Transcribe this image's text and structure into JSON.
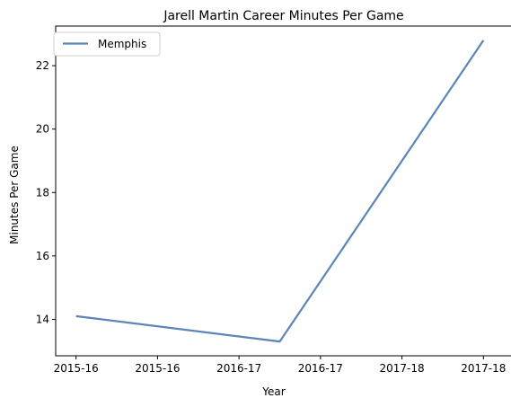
{
  "chart_data": {
    "type": "line",
    "title": "Jarell Martin Career Minutes Per Game",
    "xlabel": "Year",
    "ylabel": "Minutes Per Game",
    "x_tick_labels": [
      "2015-16",
      "2015-16",
      "2016-17",
      "2016-17",
      "2017-18",
      "2017-18"
    ],
    "x": [
      0,
      1,
      2
    ],
    "x_point_labels": [
      "2015-16",
      "2016-17",
      "2017-18"
    ],
    "xlim": [
      -0.1,
      2.1
    ],
    "ylim": [
      12.85,
      23.25
    ],
    "y_ticks": [
      14,
      16,
      18,
      20,
      22
    ],
    "grid": false,
    "legend_position": "upper left",
    "series": [
      {
        "name": "Memphis",
        "values": [
          14.1,
          13.3,
          22.8
        ],
        "color": "#5b84b8"
      }
    ]
  }
}
